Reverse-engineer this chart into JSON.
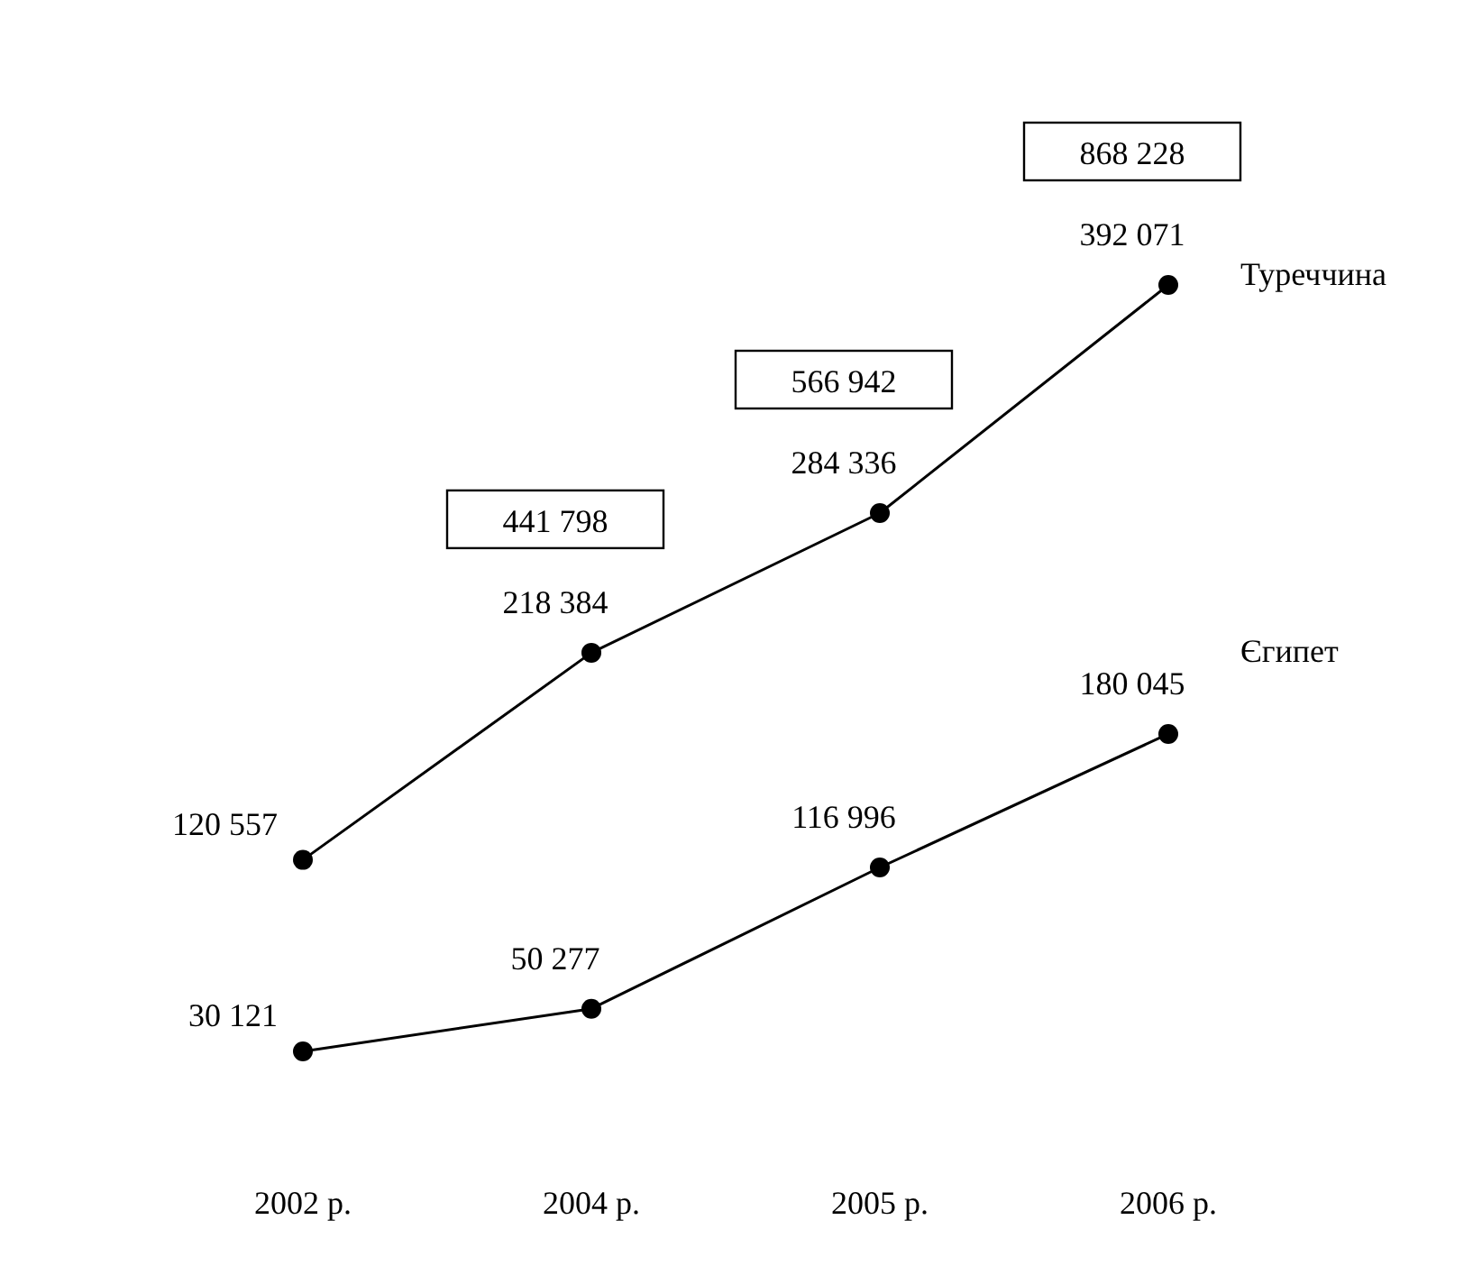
{
  "chart_data": {
    "type": "line",
    "categories": [
      "2002 р.",
      "2004 р.",
      "2005 р.",
      "2006 р."
    ],
    "series": [
      {
        "name": "Туреччина",
        "color": "#000000",
        "values": [
          120557,
          218384,
          284336,
          392071
        ],
        "value_labels": [
          "120 557",
          "218 384",
          "284 336",
          "392 071"
        ]
      },
      {
        "name": "Єгипет",
        "color": "#000000",
        "values": [
          30121,
          50277,
          116996,
          180045
        ],
        "value_labels": [
          "30 121",
          "50 277",
          "116 996",
          "180 045"
        ]
      }
    ],
    "annotations": [
      "441 798",
      "566 942",
      "868 228"
    ],
    "marker": "circle",
    "line_style": "solid",
    "grid": false,
    "tick_labels": "x"
  }
}
